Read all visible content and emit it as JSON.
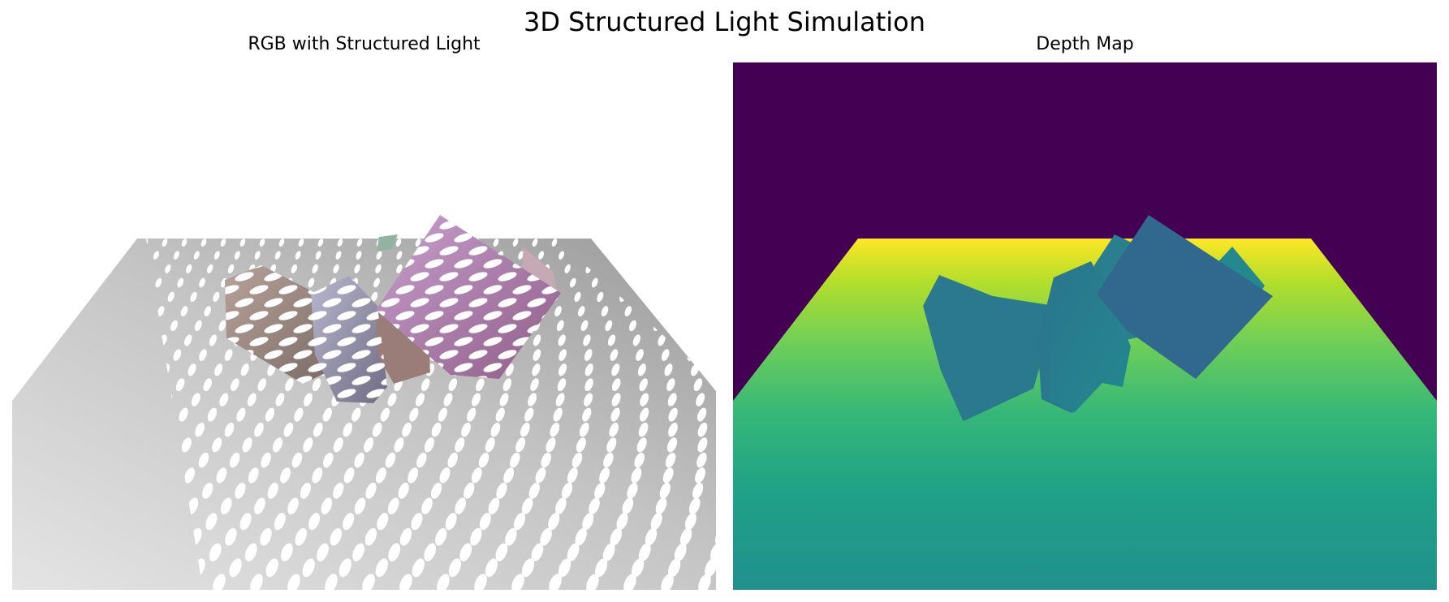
{
  "figure": {
    "suptitle": "3D Structured Light Simulation",
    "panels": [
      {
        "title": "RGB with Structured Light",
        "kind": "rgb-render"
      },
      {
        "title": "Depth Map",
        "kind": "depth-map",
        "colormap": "viridis"
      }
    ]
  },
  "colors": {
    "background_far": "#440154",
    "floor_near": "#fde725",
    "floor_far": "#21908d",
    "objects": "#2c728e",
    "floor_gray_light": "#e2e2e2",
    "floor_gray_dark": "#a8a8a8",
    "dots": "#ffffff"
  }
}
